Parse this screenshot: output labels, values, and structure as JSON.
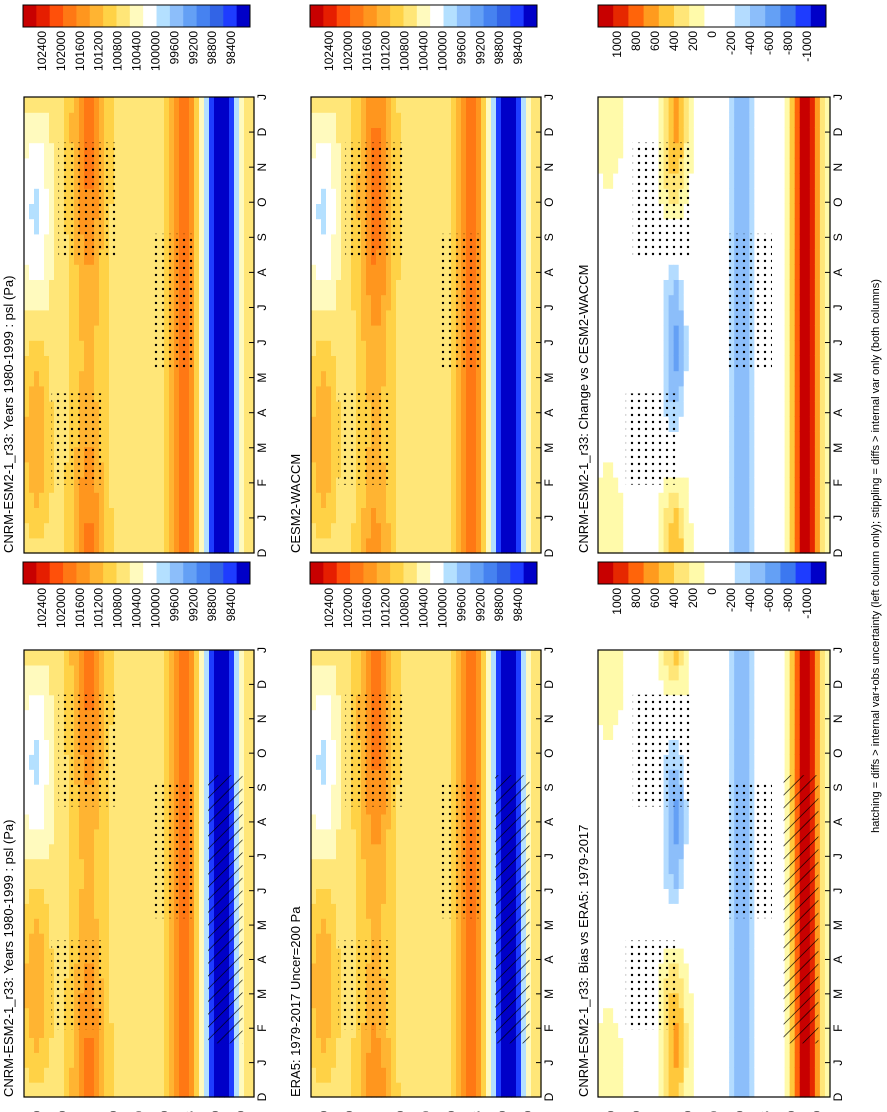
{
  "figure": {
    "footnote": "hatching = diffs > internal var+obs uncertainty (left column only); stippling = diffs > internal var only (both columns)",
    "time_labels": [
      "D",
      "J",
      "F",
      "M",
      "A",
      "M",
      "J",
      "J",
      "A",
      "S",
      "O",
      "N",
      "D",
      "J"
    ],
    "lat_labels": [
      "80",
      "60",
      "°N",
      "20",
      "0",
      "20",
      "°S",
      "60",
      "80"
    ],
    "colors": {
      "abs": [
        "#0000c8",
        "#1e3cff",
        "#3264e6",
        "#4682f0",
        "#64a0f5",
        "#8cbefa",
        "#b4e0ff",
        "#ffffff",
        "#fffabe",
        "#ffe678",
        "#ffd246",
        "#ffb432",
        "#ff961e",
        "#ff7814",
        "#ff500a",
        "#e61e00",
        "#c80000"
      ],
      "diff": [
        "#0000c8",
        "#1e3cff",
        "#3c78f0",
        "#64a0f5",
        "#8cbefa",
        "#b4dcff",
        "#ffffff",
        "#ffffff",
        "#fffaaa",
        "#ffe678",
        "#ffc83c",
        "#ff9b1e",
        "#ff640a",
        "#e62800",
        "#c80000"
      ]
    }
  },
  "chart_data": [
    {
      "type": "heatmap",
      "title": "CNRM-ESM2-1_r33: Years 1980-1999 : psl (Pa)",
      "x": [
        "D",
        "J",
        "F",
        "M",
        "A",
        "M",
        "J",
        "J",
        "A",
        "S",
        "O",
        "N",
        "D",
        "J"
      ],
      "y_ticks": [
        "80",
        "60",
        "°N",
        "20",
        "0",
        "20",
        "°S",
        "60",
        "80"
      ],
      "colorbar": [
        "102400",
        "102000",
        "101600",
        "101200",
        "100800",
        "100400",
        "100000",
        "99600",
        "99200",
        "98800",
        "98400"
      ],
      "hatching": true,
      "stippling": true
    },
    {
      "type": "heatmap",
      "title": "CNRM-ESM2-1_r33: Years 1980-1999 : psl (Pa)",
      "x": [
        "D",
        "J",
        "F",
        "M",
        "A",
        "M",
        "J",
        "J",
        "A",
        "S",
        "O",
        "N",
        "D",
        "J"
      ],
      "y_ticks": [
        "80",
        "60",
        "°N",
        "20",
        "0",
        "20",
        "°S",
        "60",
        "80"
      ],
      "colorbar": [
        "102400",
        "102000",
        "101600",
        "101200",
        "100800",
        "100400",
        "100000",
        "99600",
        "99200",
        "98800",
        "98400"
      ],
      "stippling": true
    },
    {
      "type": "heatmap",
      "title": "ERA5: 1979-2017 Uncer=200 Pa",
      "x": [
        "D",
        "J",
        "F",
        "M",
        "A",
        "M",
        "J",
        "J",
        "A",
        "S",
        "O",
        "N",
        "D",
        "J"
      ],
      "y_ticks": [
        "80",
        "60",
        "°N",
        "20",
        "0",
        "20",
        "°S",
        "60",
        "80"
      ],
      "colorbar": [
        "102400",
        "102000",
        "101600",
        "101200",
        "100800",
        "100400",
        "100000",
        "99600",
        "99200",
        "98800",
        "98400"
      ],
      "hatching": true,
      "stippling": true
    },
    {
      "type": "heatmap",
      "title": "CESM2-WACCM",
      "x": [
        "D",
        "J",
        "F",
        "M",
        "A",
        "M",
        "J",
        "J",
        "A",
        "S",
        "O",
        "N",
        "D",
        "J"
      ],
      "y_ticks": [
        "80",
        "60",
        "°N",
        "20",
        "0",
        "20",
        "°S",
        "60",
        "80"
      ],
      "colorbar": [
        "102400",
        "102000",
        "101600",
        "101200",
        "100800",
        "100400",
        "100000",
        "99600",
        "99200",
        "98800",
        "98400"
      ],
      "stippling": true
    },
    {
      "type": "heatmap",
      "title": "CNRM-ESM2-1_r33: Bias vs ERA5: 1979-2017",
      "x": [
        "D",
        "J",
        "F",
        "M",
        "A",
        "M",
        "J",
        "J",
        "A",
        "S",
        "O",
        "N",
        "D",
        "J"
      ],
      "y_ticks": [
        "80",
        "60",
        "°N",
        "20",
        "0",
        "20",
        "°S",
        "60",
        "80"
      ],
      "colorbar": [
        "1000",
        "800",
        "600",
        "400",
        "200",
        "0",
        "-200",
        "-400",
        "-600",
        "-800",
        "-1000"
      ],
      "hatching": true,
      "stippling": true
    },
    {
      "type": "heatmap",
      "title": "CNRM-ESM2-1_r33: Change vs CESM2-WACCM",
      "x": [
        "D",
        "J",
        "F",
        "M",
        "A",
        "M",
        "J",
        "J",
        "A",
        "S",
        "O",
        "N",
        "D",
        "J"
      ],
      "y_ticks": [
        "80",
        "60",
        "°N",
        "20",
        "0",
        "20",
        "°S",
        "60",
        "80"
      ],
      "colorbar": [
        "1000",
        "800",
        "600",
        "400",
        "200",
        "0",
        "-200",
        "-400",
        "-600",
        "-800",
        "-1000"
      ],
      "stippling": true
    }
  ]
}
